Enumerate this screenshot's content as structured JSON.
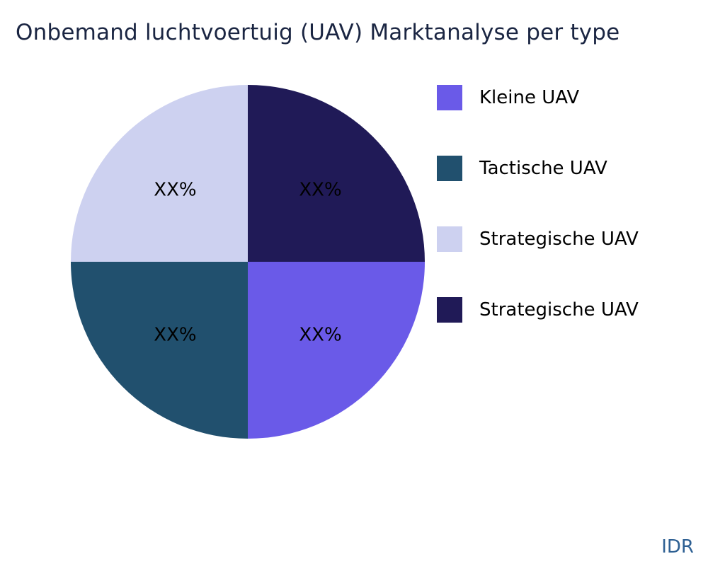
{
  "title": "Onbemand luchtvoertuig (UAV) Marktanalyse per type",
  "watermark": "IDR",
  "chart_data": {
    "type": "pie",
    "title": "Onbemand luchtvoertuig (UAV) Marktanalyse per type",
    "legend_position": "right",
    "start_angle_deg": -90,
    "direction": "clockwise",
    "slices": [
      {
        "label": "Strategische UAV",
        "value": 25,
        "display": "XX%",
        "color": "#201a57"
      },
      {
        "label": "Kleine UAV",
        "value": 25,
        "display": "XX%",
        "color": "#6a5ae8"
      },
      {
        "label": "Tactische UAV",
        "value": 25,
        "display": "XX%",
        "color": "#21506e"
      },
      {
        "label": "Strategische UAV",
        "value": 25,
        "display": "XX%",
        "color": "#cdd1f0"
      }
    ],
    "legend": [
      {
        "label": "Kleine UAV",
        "color": "#6a5ae8"
      },
      {
        "label": "Tactische UAV",
        "color": "#21506e"
      },
      {
        "label": "Strategische UAV",
        "color": "#cdd1f0"
      },
      {
        "label": "Strategische UAV",
        "color": "#201a57"
      }
    ]
  }
}
